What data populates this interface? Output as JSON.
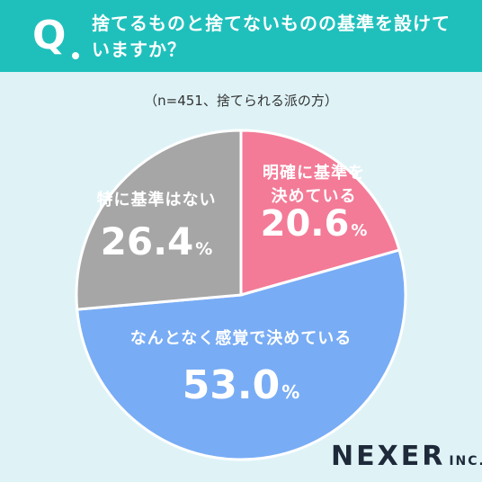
{
  "header": {
    "q_mark": "Q",
    "question_line1": "捨てるものと捨てないものの基準を設けて",
    "question_line2": "いますか？"
  },
  "note": "（n=451、捨てられる派の方）",
  "chart_data": {
    "type": "pie",
    "start": "top",
    "direction": "clockwise",
    "slices": [
      {
        "label_lines": [
          "明確に基準を",
          "決めている"
        ],
        "value": 20.6,
        "display": "20.6",
        "color": "#f37b97"
      },
      {
        "label_lines": [
          "なんとなく感覚で決めている"
        ],
        "value": 53.0,
        "display": "53.0",
        "color": "#78acf5"
      },
      {
        "label_lines": [
          "特に基準はない"
        ],
        "value": 26.4,
        "display": "26.4",
        "color": "#a6a6a6"
      }
    ],
    "unit": "%"
  },
  "brand": {
    "main": "NEXER",
    "sub": "INC."
  }
}
